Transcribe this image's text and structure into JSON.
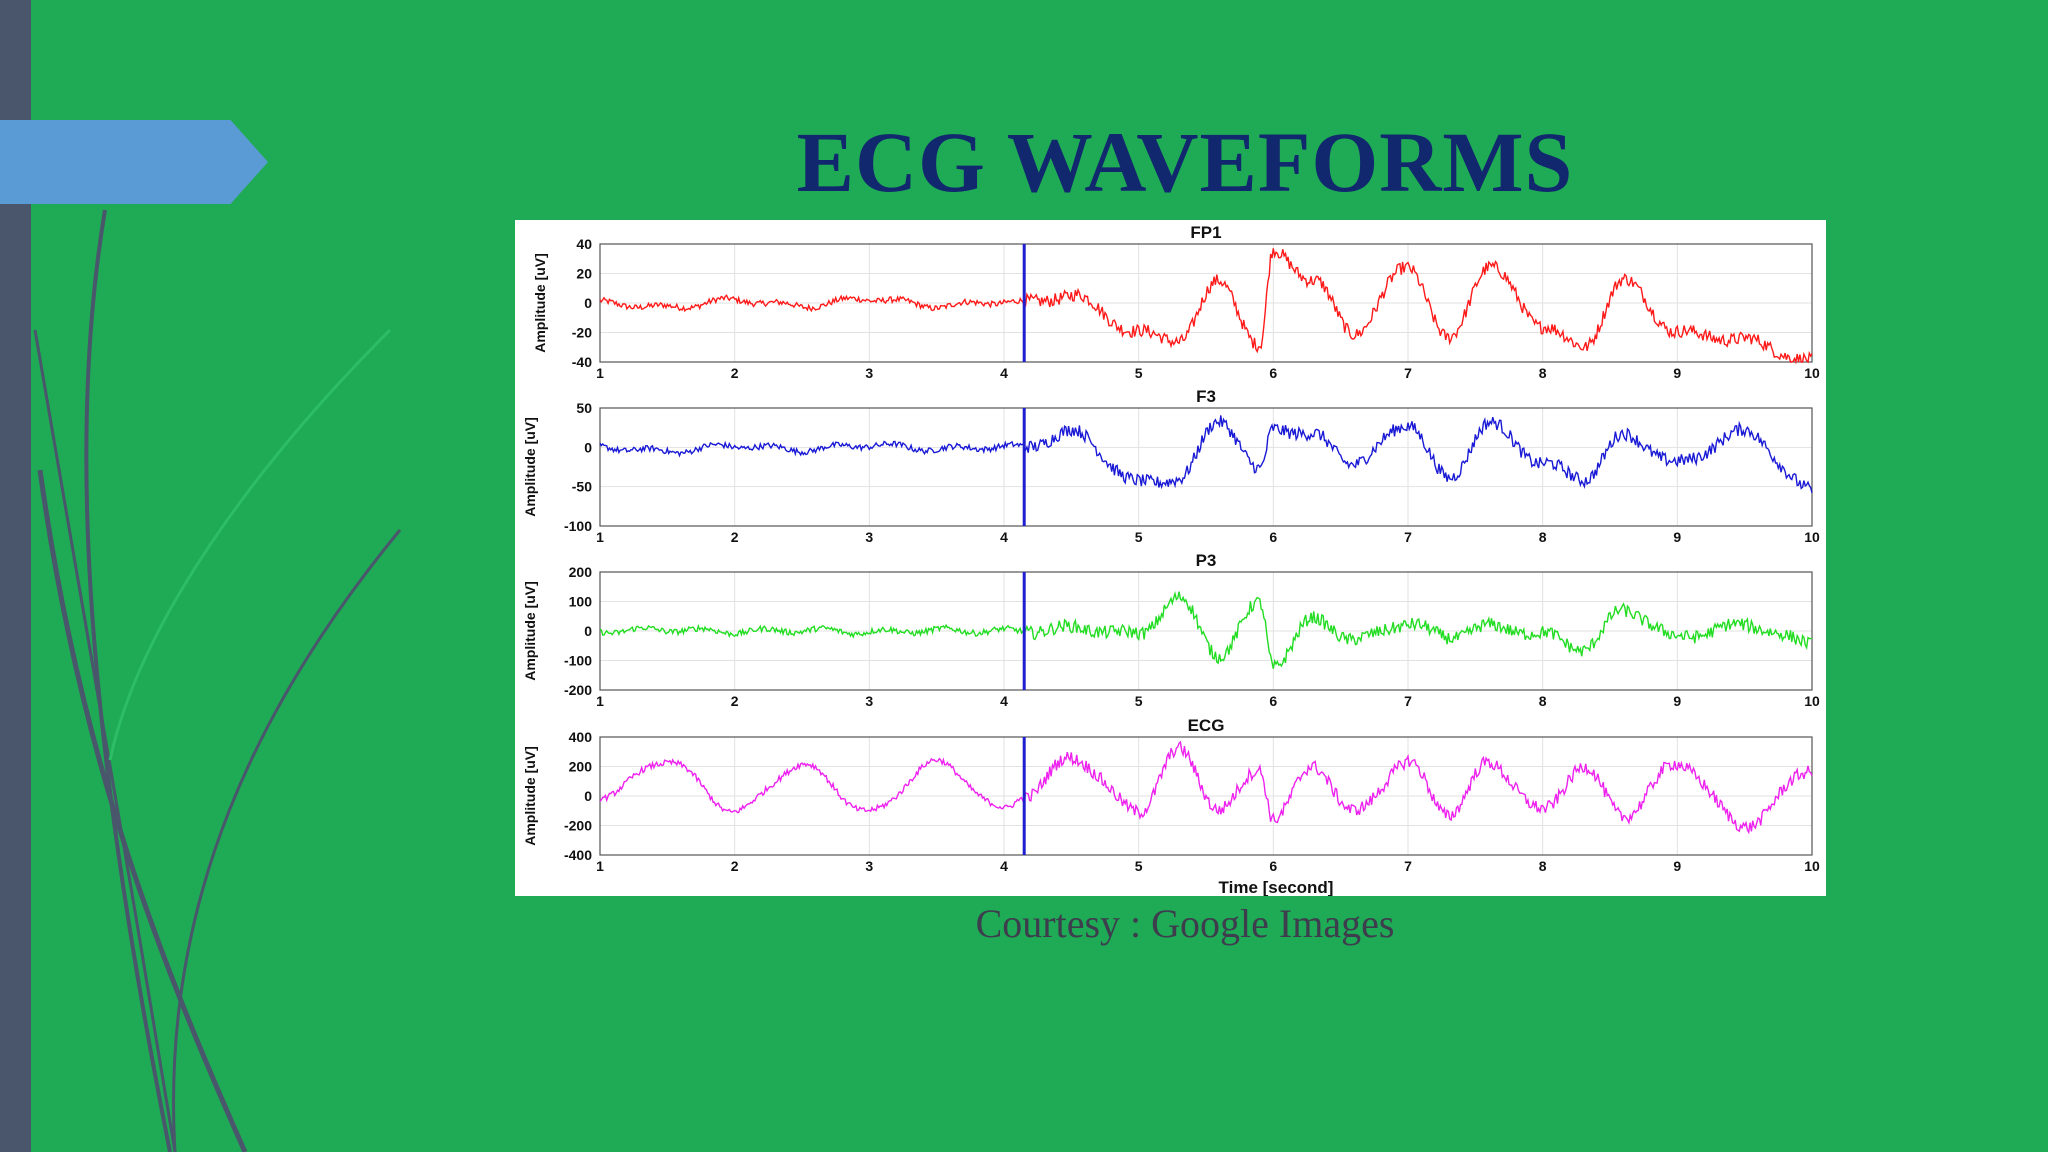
{
  "slide": {
    "title": "ECG WAVEFORMS",
    "caption": "Courtesy : Google Images",
    "colors": {
      "background": "#1faa55",
      "title": "#11286e",
      "accent_arrow": "#5b9bd5",
      "left_bar": "#49566b",
      "caption": "#3d3d4e",
      "marker_line": "#1f1fd0"
    }
  },
  "chart_data": [
    {
      "type": "line",
      "title": "FP1",
      "ylabel": "Amplitude [uV]",
      "xlabel": "",
      "xlim": [
        1,
        10
      ],
      "ylim": [
        -40,
        40
      ],
      "yticks": [
        40,
        20,
        0,
        -20,
        -40
      ],
      "xticks": [
        1,
        2,
        3,
        4,
        5,
        6,
        7,
        8,
        9,
        10
      ],
      "grid": true,
      "color": "#ff1a1a",
      "marker_x": 4.15,
      "series": [
        {
          "x": [
            1,
            1.5,
            2,
            2.5,
            3,
            3.5,
            4,
            4.15,
            4.5,
            5,
            5.3,
            5.6,
            5.9,
            6.0,
            6.3,
            6.6,
            7,
            7.3,
            7.6,
            8,
            8.3,
            8.6,
            9,
            9.5,
            10
          ],
          "values": [
            0,
            -3,
            2,
            -2,
            3,
            -2,
            1,
            0,
            5,
            -20,
            -25,
            15,
            -30,
            35,
            15,
            -20,
            25,
            -25,
            25,
            -15,
            -30,
            15,
            -20,
            -25,
            -40
          ]
        }
      ]
    },
    {
      "type": "line",
      "title": "F3",
      "ylabel": "Amplitude [uV]",
      "xlabel": "",
      "xlim": [
        1,
        10
      ],
      "ylim": [
        -100,
        50
      ],
      "yticks": [
        50,
        0,
        -50,
        -100
      ],
      "xticks": [
        1,
        2,
        3,
        4,
        5,
        6,
        7,
        8,
        9,
        10
      ],
      "grid": true,
      "color": "#1a1ad6",
      "marker_x": 4.15,
      "series": [
        {
          "x": [
            1,
            1.5,
            2,
            2.5,
            3,
            3.5,
            4,
            4.15,
            4.5,
            5,
            5.3,
            5.6,
            5.9,
            6.0,
            6.3,
            6.6,
            7,
            7.3,
            7.6,
            8,
            8.3,
            8.6,
            9,
            9.5,
            10
          ],
          "values": [
            0,
            -5,
            2,
            -3,
            3,
            -2,
            1,
            0,
            20,
            -45,
            -40,
            35,
            -30,
            25,
            15,
            -20,
            30,
            -40,
            30,
            -20,
            -40,
            15,
            -20,
            20,
            -55
          ]
        }
      ]
    },
    {
      "type": "line",
      "title": "P3",
      "ylabel": "Amplitude [uV]",
      "xlabel": "",
      "xlim": [
        1,
        10
      ],
      "ylim": [
        -200,
        200
      ],
      "yticks": [
        200,
        100,
        0,
        -100,
        -200
      ],
      "xticks": [
        1,
        2,
        3,
        4,
        5,
        6,
        7,
        8,
        9,
        10
      ],
      "grid": true,
      "color": "#22dd22",
      "marker_x": 4.15,
      "series": [
        {
          "x": [
            1,
            1.5,
            2,
            2.5,
            3,
            3.5,
            4,
            4.15,
            4.5,
            5,
            5.3,
            5.6,
            5.9,
            6.0,
            6.3,
            6.6,
            7,
            7.3,
            7.6,
            8,
            8.3,
            8.6,
            9,
            9.5,
            10
          ],
          "values": [
            0,
            5,
            -2,
            3,
            -3,
            2,
            0,
            0,
            10,
            -10,
            110,
            -80,
            95,
            -115,
            40,
            -30,
            25,
            -20,
            15,
            -10,
            -60,
            70,
            -20,
            20,
            -40
          ]
        }
      ]
    },
    {
      "type": "line",
      "title": "ECG",
      "ylabel": "Amplitude [uV]",
      "xlabel": "Time [second]",
      "xlim": [
        1,
        10
      ],
      "ylim": [
        -400,
        400
      ],
      "yticks": [
        400,
        200,
        0,
        -200,
        -400
      ],
      "xticks": [
        1,
        2,
        3,
        4,
        5,
        6,
        7,
        8,
        9,
        10
      ],
      "grid": true,
      "color": "#ee22ee",
      "marker_x": 4.15,
      "series": [
        {
          "x": [
            1,
            1.5,
            2,
            2.5,
            3,
            3.5,
            4,
            4.15,
            4.5,
            5,
            5.3,
            5.6,
            5.9,
            6.0,
            6.3,
            6.6,
            7,
            7.3,
            7.6,
            8,
            8.3,
            8.6,
            9,
            9.5,
            10
          ],
          "values": [
            0,
            240,
            -100,
            210,
            -110,
            230,
            -90,
            0,
            260,
            -100,
            310,
            -90,
            180,
            -150,
            200,
            -110,
            230,
            -120,
            220,
            -100,
            200,
            -130,
            220,
            -200,
            180
          ]
        }
      ]
    }
  ]
}
